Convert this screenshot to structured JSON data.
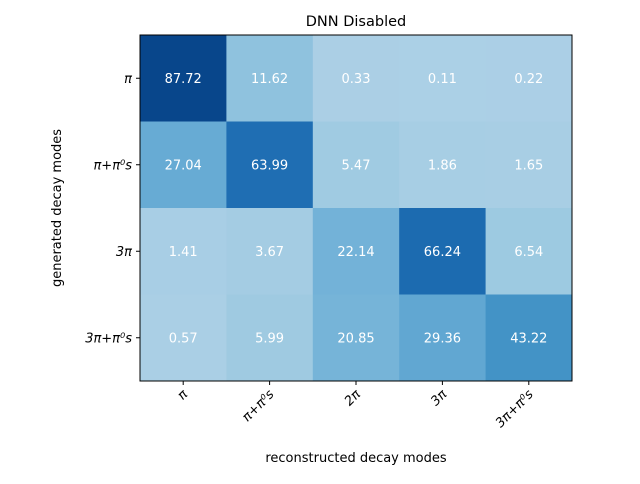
{
  "chart_data": {
    "type": "heatmap",
    "title": "DNN Disabled",
    "xlabel": "reconstructed decay modes",
    "ylabel": "generated decay modes",
    "x_categories": [
      "π",
      "π+π⁰s",
      "2π",
      "3π",
      "3π+π⁰s"
    ],
    "y_categories": [
      "π",
      "π+π⁰s",
      "3π",
      "3π+π⁰s"
    ],
    "values": [
      [
        87.72,
        11.62,
        0.33,
        0.11,
        0.22
      ],
      [
        27.04,
        63.99,
        5.47,
        1.86,
        1.65
      ],
      [
        1.41,
        3.67,
        22.14,
        66.24,
        6.54
      ],
      [
        0.57,
        5.99,
        20.85,
        29.36,
        43.22
      ]
    ],
    "value_labels": [
      [
        "87.72",
        "11.62",
        "0.33",
        "0.11",
        "0.22"
      ],
      [
        "27.04",
        "63.99",
        "5.47",
        "1.86",
        "1.65"
      ],
      [
        "1.41",
        "3.67",
        "22.14",
        "66.24",
        "6.54"
      ],
      [
        "0.57",
        "5.99",
        "20.85",
        "29.36",
        "43.22"
      ]
    ],
    "colormap": "Blues",
    "color_range": [
      -50,
      100
    ],
    "grid": false
  }
}
